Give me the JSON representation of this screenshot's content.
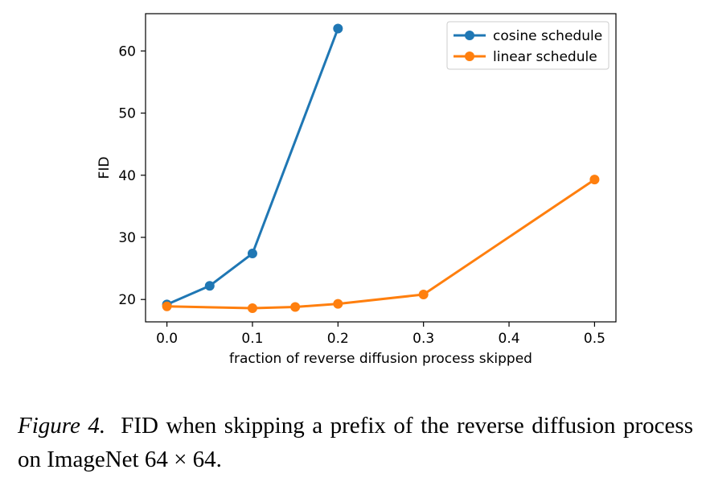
{
  "chart_data": {
    "type": "line",
    "title": "",
    "xlabel": "fraction of reverse diffusion process skipped",
    "ylabel": "FID",
    "xlim": [
      -0.025,
      0.525
    ],
    "ylim": [
      16.4,
      66.0
    ],
    "xticks": [
      0.0,
      0.1,
      0.2,
      0.3,
      0.4,
      0.5
    ],
    "xtick_labels": [
      "0.0",
      "0.1",
      "0.2",
      "0.3",
      "0.4",
      "0.5"
    ],
    "yticks": [
      20,
      30,
      40,
      50,
      60
    ],
    "ytick_labels": [
      "20",
      "30",
      "40",
      "50",
      "60"
    ],
    "grid": false,
    "legend_position": "top-right",
    "series": [
      {
        "name": "cosine schedule",
        "color": "#1f77b4",
        "x": [
          0.0,
          0.05,
          0.1,
          0.2
        ],
        "y": [
          19.2,
          22.2,
          27.4,
          63.6
        ]
      },
      {
        "name": "linear schedule",
        "color": "#ff7f0e",
        "x": [
          0.0,
          0.1,
          0.15,
          0.2,
          0.3,
          0.5
        ],
        "y": [
          18.9,
          18.6,
          18.8,
          19.3,
          20.8,
          39.3
        ]
      }
    ]
  },
  "caption": {
    "label": "Figure 4.",
    "text": "FID when skipping a prefix of the reverse diffusion process on ImageNet 64 × 64."
  }
}
